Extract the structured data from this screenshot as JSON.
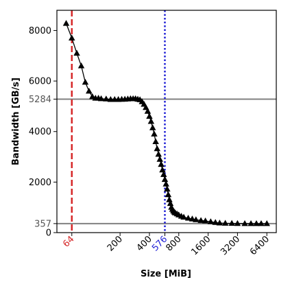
{
  "chart_data": {
    "type": "line",
    "title": "",
    "xlabel": "Size [MiB]",
    "ylabel": "Bandwidth [GB/s]",
    "xscale": "log2",
    "xlim": [
      45,
      8000
    ],
    "ylim": [
      0,
      8800
    ],
    "xticks": [
      {
        "value": 64,
        "label": "64",
        "color": "#d62728"
      },
      {
        "value": 200,
        "label": "200",
        "color": "#000000"
      },
      {
        "value": 400,
        "label": "400",
        "color": "#000000"
      },
      {
        "value": 576,
        "label": "576",
        "color": "#1f1fd6"
      },
      {
        "value": 800,
        "label": "800",
        "color": "#000000"
      },
      {
        "value": 1600,
        "label": "1600",
        "color": "#000000"
      },
      {
        "value": 3200,
        "label": "3200",
        "color": "#000000"
      },
      {
        "value": 6400,
        "label": "6400",
        "color": "#000000"
      }
    ],
    "yticks": [
      {
        "value": 0,
        "label": "0",
        "color": "#000000"
      },
      {
        "value": 357,
        "label": "357",
        "color": "#555555"
      },
      {
        "value": 2000,
        "label": "2000",
        "color": "#000000"
      },
      {
        "value": 4000,
        "label": "4000",
        "color": "#000000"
      },
      {
        "value": 5284,
        "label": "5284",
        "color": "#555555"
      },
      {
        "value": 6000,
        "label": "6000",
        "color": "#000000"
      },
      {
        "value": 8000,
        "label": "8000",
        "color": "#000000"
      }
    ],
    "hlines": [
      {
        "value": 5284,
        "color": "#808080",
        "style": "solid"
      },
      {
        "value": 357,
        "color": "#808080",
        "style": "solid"
      }
    ],
    "vlines": [
      {
        "value": 64,
        "color": "#d62728",
        "style": "dashed"
      },
      {
        "value": 576,
        "color": "#1f1fd6",
        "style": "dotted"
      }
    ],
    "grid": false,
    "marker": "triangle",
    "series": [
      {
        "name": "",
        "color": "#000000",
        "x": [
          56,
          64,
          72,
          80,
          88,
          96,
          104,
          112,
          120,
          128,
          144,
          160,
          176,
          192,
          208,
          224,
          240,
          256,
          272,
          288,
          304,
          320,
          336,
          352,
          368,
          384,
          400,
          416,
          432,
          448,
          464,
          480,
          496,
          512,
          528,
          544,
          560,
          576,
          592,
          608,
          624,
          640,
          656,
          672,
          688,
          704,
          720,
          736,
          768,
          800,
          850,
          900,
          1000,
          1100,
          1200,
          1350,
          1500,
          1700,
          1900,
          2100,
          2400,
          2800,
          3200,
          3800,
          4400,
          5000,
          5600,
          6400
        ],
        "y": [
          8280,
          7700,
          7100,
          6600,
          5950,
          5600,
          5380,
          5320,
          5320,
          5300,
          5290,
          5270,
          5270,
          5270,
          5275,
          5280,
          5290,
          5300,
          5300,
          5300,
          5280,
          5260,
          5180,
          5080,
          4950,
          4800,
          4600,
          4400,
          4150,
          3900,
          3600,
          3320,
          3100,
          2900,
          2700,
          2480,
          2300,
          2100,
          1920,
          1720,
          1500,
          1300,
          1150,
          1000,
          920,
          860,
          810,
          780,
          740,
          700,
          650,
          610,
          570,
          540,
          510,
          480,
          460,
          430,
          400,
          380,
          370,
          365,
          360,
          358,
          357,
          357,
          357,
          357
        ]
      }
    ]
  }
}
